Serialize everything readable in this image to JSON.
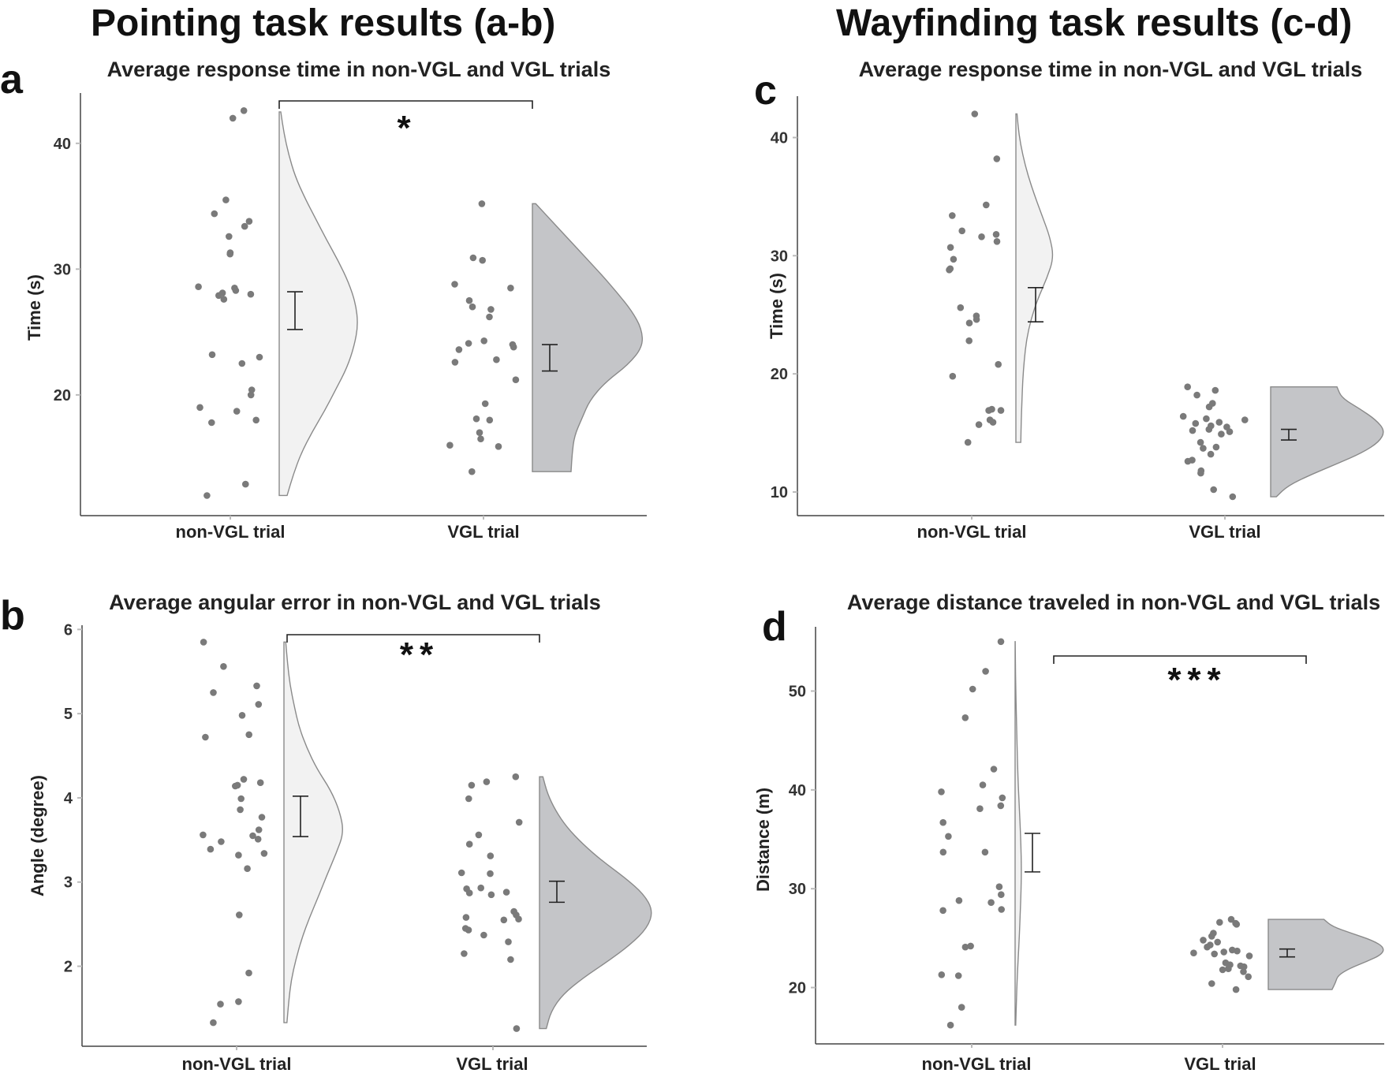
{
  "section_titles": {
    "left": "Pointing task results (a-b)",
    "right": "Wayfinding task results (c-d)"
  },
  "colors": {
    "points": "#7a7a7a",
    "non_vgl_fill": "#f2f2f2",
    "vgl_fill": "#c4c5c8",
    "violin_stroke": "#8a8a8a",
    "axis": "#444444"
  },
  "chart_data": [
    {
      "panel": "a",
      "type": "raincloud",
      "title": "Average response time in non-VGL and VGL trials",
      "ylabel": "Time (s)",
      "xlabel": "",
      "ylim": [
        10.4,
        44
      ],
      "yticks": [
        20,
        30,
        40
      ],
      "categories": [
        "non-VGL trial",
        "VGL trial"
      ],
      "significance": "*",
      "groups": [
        {
          "name": "non-VGL trial",
          "points": [
            42.6,
            42.0,
            35.5,
            34.4,
            33.8,
            33.4,
            32.6,
            31.3,
            31.2,
            28.6,
            28.5,
            28.3,
            28.1,
            28.0,
            27.9,
            27.6,
            23.2,
            23.0,
            22.5,
            20.4,
            20.0,
            19.0,
            18.7,
            18.0,
            17.8,
            12.9,
            12.0
          ],
          "violin_range": [
            12.0,
            42.5
          ],
          "mean": 26.7,
          "se_low": 25.2,
          "se_high": 28.2,
          "density": [
            0.1,
            0.18,
            0.28,
            0.42,
            0.58,
            0.72,
            0.86,
            0.95,
            1.0,
            0.97,
            0.88,
            0.75,
            0.6,
            0.46,
            0.32,
            0.2,
            0.12,
            0.06,
            0.02
          ]
        },
        {
          "name": "VGL trial",
          "points": [
            35.2,
            30.9,
            30.7,
            28.8,
            28.5,
            27.5,
            27.0,
            26.8,
            26.2,
            24.3,
            24.1,
            24.0,
            23.8,
            23.6,
            22.8,
            22.6,
            21.2,
            19.3,
            18.1,
            18.0,
            17.0,
            16.5,
            16.0,
            15.9,
            13.9
          ],
          "violin_range": [
            13.9,
            35.2
          ],
          "mean": 22.9,
          "se_low": 21.9,
          "se_high": 24.0,
          "density": [
            0.35,
            0.36,
            0.38,
            0.45,
            0.52,
            0.66,
            0.87,
            1.0,
            0.99,
            0.9,
            0.77,
            0.63,
            0.48,
            0.33,
            0.18,
            0.03
          ]
        }
      ]
    },
    {
      "panel": "b",
      "type": "raincloud",
      "title": "Average angular error in non-VGL and VGL trials",
      "ylabel": "Angle (degree)",
      "xlabel": "",
      "ylim": [
        1.05,
        6.05
      ],
      "yticks": [
        2,
        3,
        4,
        5,
        6
      ],
      "categories": [
        "non-VGL trial",
        "VGL trial"
      ],
      "significance": "**",
      "groups": [
        {
          "name": "non-VGL trial",
          "points": [
            5.85,
            5.56,
            5.33,
            5.25,
            5.11,
            4.98,
            4.75,
            4.72,
            4.22,
            4.18,
            4.15,
            4.14,
            3.99,
            3.86,
            3.77,
            3.62,
            3.56,
            3.55,
            3.51,
            3.48,
            3.39,
            3.34,
            3.32,
            3.16,
            2.61,
            1.92,
            1.58,
            1.55,
            1.33
          ],
          "violin_range": [
            1.33,
            5.85
          ],
          "mean": 3.77,
          "se_low": 3.54,
          "se_high": 4.02,
          "density": [
            0.05,
            0.08,
            0.12,
            0.2,
            0.3,
            0.43,
            0.58,
            0.72,
            0.87,
            1.0,
            0.93,
            0.78,
            0.55,
            0.38,
            0.25,
            0.17,
            0.1,
            0.06,
            0.03
          ]
        },
        {
          "name": "VGL trial",
          "points": [
            4.25,
            4.19,
            4.15,
            3.99,
            3.71,
            3.56,
            3.45,
            3.31,
            3.11,
            3.1,
            2.93,
            2.92,
            2.88,
            2.87,
            2.85,
            2.65,
            2.61,
            2.58,
            2.56,
            2.55,
            2.45,
            2.43,
            2.37,
            2.29,
            2.15,
            2.08,
            1.26
          ],
          "violin_range": [
            1.26,
            4.25
          ],
          "mean": 2.89,
          "se_low": 2.76,
          "se_high": 3.01,
          "density": [
            0.06,
            0.1,
            0.2,
            0.38,
            0.6,
            0.8,
            0.95,
            1.0,
            0.92,
            0.75,
            0.55,
            0.38,
            0.24,
            0.14,
            0.07,
            0.03
          ]
        }
      ]
    },
    {
      "panel": "c",
      "type": "raincloud",
      "title": "Average response time in non-VGL and VGL trials",
      "ylabel": "Time (s)",
      "xlabel": "",
      "ylim": [
        8.0,
        43.5
      ],
      "yticks": [
        10,
        20,
        30,
        40
      ],
      "categories": [
        "non-VGL trial",
        "VGL trial"
      ],
      "significance": "",
      "groups": [
        {
          "name": "non-VGL trial",
          "points": [
            42.0,
            38.2,
            34.3,
            33.4,
            32.1,
            31.8,
            31.6,
            31.2,
            30.7,
            29.7,
            28.9,
            28.8,
            25.6,
            24.9,
            24.6,
            24.3,
            22.8,
            20.8,
            19.8,
            17.0,
            16.9,
            16.9,
            16.1,
            15.9,
            15.7,
            14.2
          ],
          "violin_range": [
            14.2,
            42.0
          ],
          "mean": 25.9,
          "se_low": 24.4,
          "se_high": 27.3,
          "density": [
            0.13,
            0.14,
            0.16,
            0.18,
            0.22,
            0.28,
            0.4,
            0.58,
            0.82,
            1.0,
            0.9,
            0.7,
            0.5,
            0.32,
            0.18,
            0.08,
            0.03
          ]
        },
        {
          "name": "VGL trial",
          "points": [
            18.9,
            18.6,
            18.2,
            17.5,
            17.2,
            16.4,
            16.2,
            16.1,
            15.9,
            15.8,
            15.6,
            15.5,
            15.3,
            15.2,
            15.1,
            14.9,
            14.2,
            13.8,
            13.7,
            13.2,
            12.7,
            12.6,
            11.8,
            11.6,
            10.2,
            9.6
          ],
          "violin_range": [
            9.6,
            18.9
          ],
          "mean": 14.8,
          "se_low": 14.4,
          "se_high": 15.3,
          "density": [
            0.05,
            0.15,
            0.35,
            0.58,
            0.8,
            0.95,
            1.0,
            0.92,
            0.78,
            0.62,
            0.58
          ]
        }
      ]
    },
    {
      "panel": "d",
      "type": "raincloud",
      "title": "Average distance traveled in non-VGL and VGL trials",
      "ylabel": "Distance (m)",
      "xlabel": "",
      "ylim": [
        14.3,
        56.5
      ],
      "yticks": [
        20,
        30,
        40,
        50
      ],
      "categories": [
        "non-VGL trial",
        "VGL trial"
      ],
      "significance": "***",
      "groups": [
        {
          "name": "non-VGL trial",
          "points": [
            55.0,
            52.0,
            50.2,
            47.3,
            42.1,
            40.5,
            39.8,
            39.2,
            38.4,
            38.1,
            36.7,
            35.3,
            33.7,
            33.7,
            30.2,
            29.4,
            28.8,
            28.6,
            27.9,
            27.8,
            24.2,
            24.1,
            21.3,
            21.2,
            18.0,
            16.2
          ],
          "violin_range": [
            16.2,
            55.0
          ],
          "mean": 33.6,
          "se_low": 31.7,
          "se_high": 35.6,
          "density": [
            0.1,
            0.2,
            0.32,
            0.5,
            0.68,
            0.82,
            0.95,
            1.0,
            0.92,
            0.78,
            0.6,
            0.45,
            0.35,
            0.26,
            0.18,
            0.1,
            0.05,
            0.02
          ]
        },
        {
          "name": "VGL trial",
          "points": [
            26.9,
            26.6,
            26.5,
            26.4,
            25.5,
            25.2,
            24.8,
            24.6,
            24.3,
            24.1,
            23.8,
            23.7,
            23.6,
            23.5,
            23.4,
            23.2,
            22.5,
            22.3,
            22.2,
            22.1,
            21.9,
            21.8,
            21.6,
            21.1,
            20.4,
            19.8
          ],
          "violin_range": [
            19.8,
            26.9
          ],
          "mean": 23.5,
          "se_low": 23.1,
          "se_high": 23.9,
          "density": [
            0.55,
            0.58,
            0.6,
            0.7,
            0.85,
            0.98,
            1.0,
            0.9,
            0.72,
            0.55,
            0.48
          ]
        }
      ]
    }
  ]
}
